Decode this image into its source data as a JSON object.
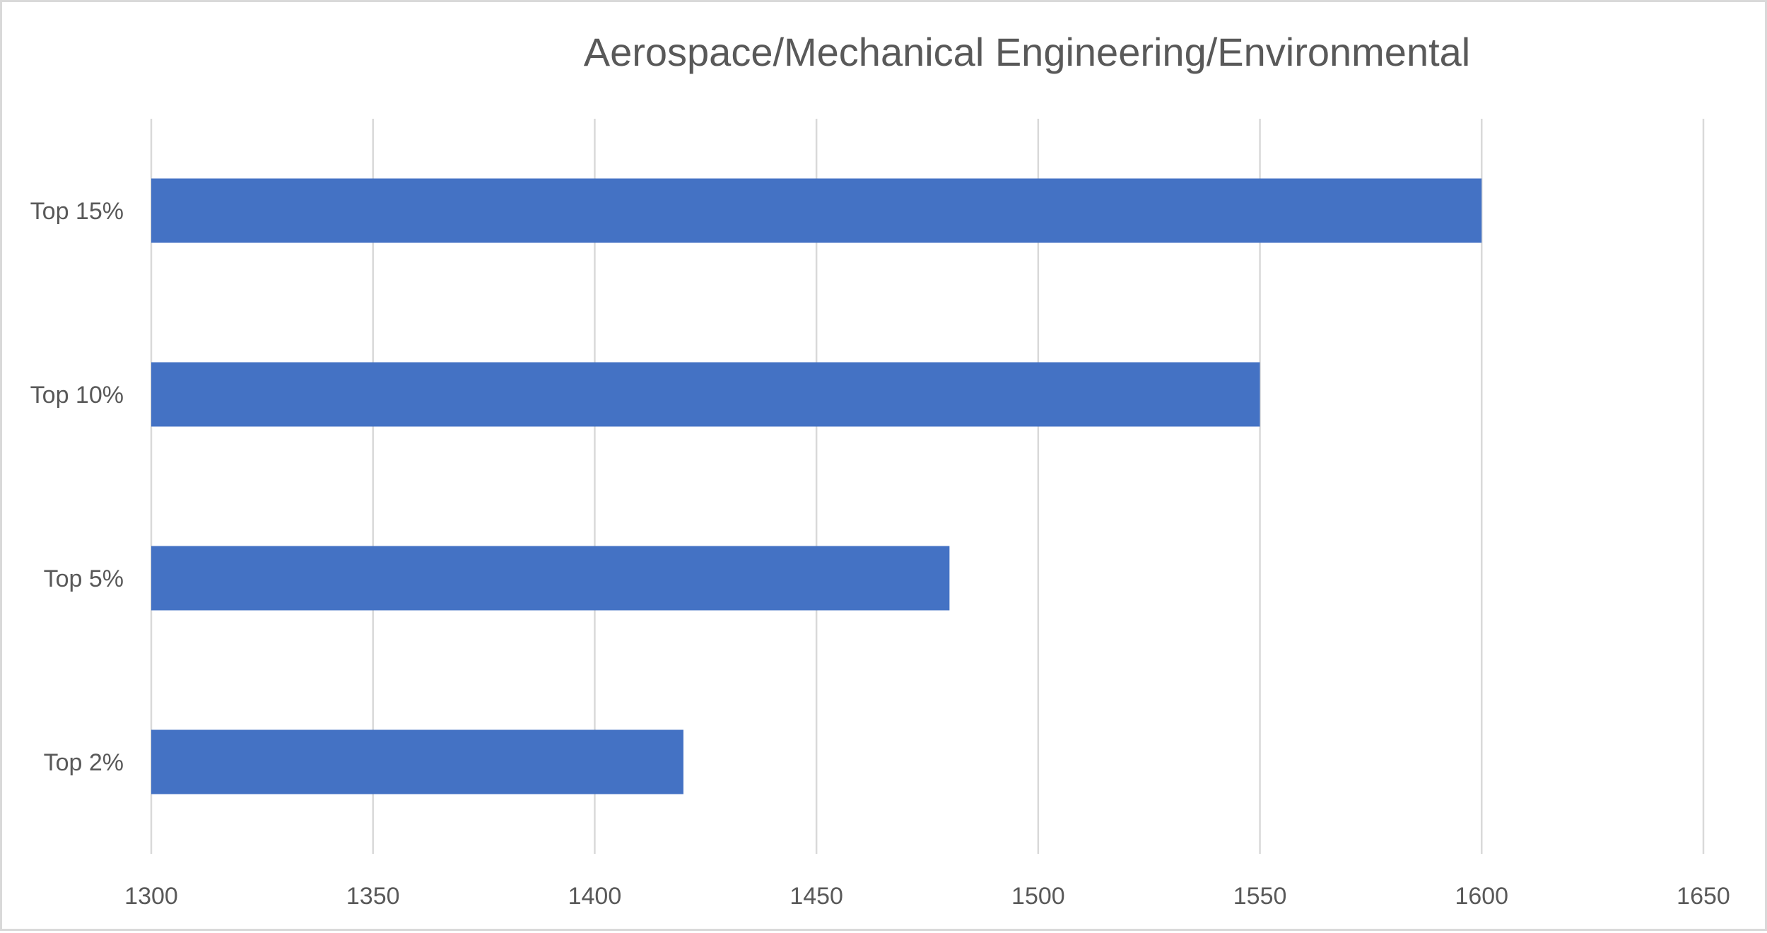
{
  "chart_data": {
    "type": "bar",
    "orientation": "horizontal",
    "title": "Aerospace/Mechanical Engineering/Environmental",
    "categories": [
      "Top 15%",
      "Top 10%",
      "Top 5%",
      "Top 2%"
    ],
    "values": [
      1600,
      1550,
      1480,
      1420
    ],
    "xlim": [
      1300,
      1650
    ],
    "x_ticks": [
      "1300",
      "1350",
      "1400",
      "1450",
      "1500",
      "1550",
      "1600",
      "1650"
    ],
    "grid": "vertical",
    "legend": "none",
    "bar_color": "#4472c4",
    "gridline_color": "#d9d9d9",
    "text_color": "#595959"
  }
}
